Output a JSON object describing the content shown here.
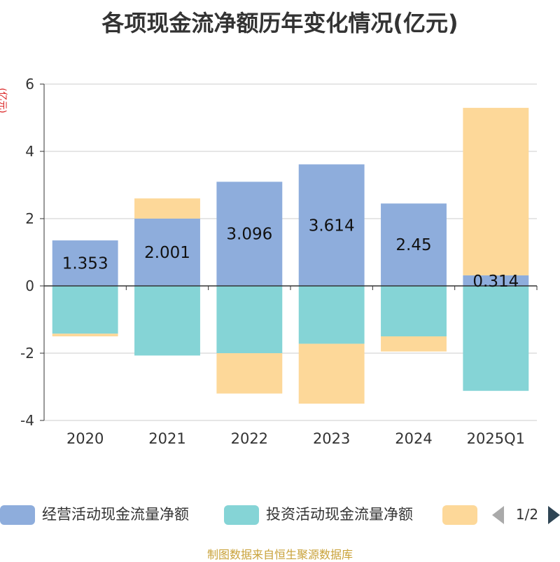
{
  "chart_data": {
    "type": "bar",
    "title": "各项现金流净额历年变化情况(亿元)",
    "ylabel": "(亿元)",
    "ylim": [
      -4,
      6
    ],
    "yticks": [
      -4,
      -2,
      0,
      2,
      4,
      6
    ],
    "categories": [
      "2020",
      "2021",
      "2022",
      "2023",
      "2024",
      "2025Q1"
    ],
    "stacked": true,
    "series": [
      {
        "name": "经营活动现金流量净额",
        "color": "#8eaddc",
        "values": [
          1.353,
          2.001,
          3.096,
          3.614,
          2.45,
          0.314
        ],
        "labels": [
          "1.353",
          "2.001",
          "3.096",
          "3.614",
          "2.45",
          "0.314"
        ]
      },
      {
        "name": "投资活动现金流量净额",
        "color": "#85d4d6",
        "values": [
          -1.42,
          -2.07,
          -2.0,
          -1.72,
          -1.5,
          -3.12
        ]
      },
      {
        "name": "",
        "color": "#fdd899",
        "values": [
          -0.08,
          0.6,
          -1.2,
          -1.78,
          -0.45,
          4.98
        ]
      }
    ]
  },
  "legend": {
    "items": [
      {
        "label": "经营活动现金流量净额",
        "color": "#8eaddc"
      },
      {
        "label": "投资活动现金流量净额",
        "color": "#85d4d6"
      },
      {
        "label": "",
        "color": "#fdd899"
      }
    ],
    "pager": "1/2"
  },
  "source": "制图数据来自恒生聚源数据库"
}
